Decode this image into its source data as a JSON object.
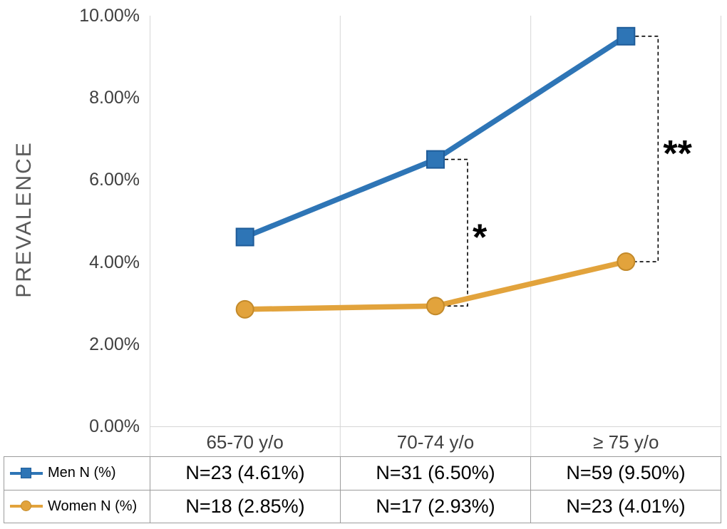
{
  "chart_data": {
    "type": "line",
    "title": "",
    "ylabel": "PREVALENCE",
    "xlabel": "",
    "categories": [
      "65-70 y/o",
      "70-74 y/o",
      "≥ 75 y/o"
    ],
    "series": [
      {
        "name": "Men N (%)",
        "values": [
          4.61,
          6.5,
          9.5
        ],
        "counts": [
          23,
          31,
          59
        ],
        "color": "#2E75B6",
        "marker_edge": "#1F5C99",
        "marker": "square"
      },
      {
        "name": "Women N (%)",
        "values": [
          2.85,
          2.93,
          4.01
        ],
        "counts": [
          18,
          17,
          23
        ],
        "color": "#E2A33C",
        "marker_edge": "#C38A2A",
        "marker": "circle"
      }
    ],
    "ylim": [
      0,
      10
    ],
    "ytick_step": 2,
    "ytick_labels": [
      "0.00%",
      "2.00%",
      "4.00%",
      "6.00%",
      "8.00%",
      "10.00%"
    ],
    "grid": "vertical",
    "gridline_color": "#D6D6D6",
    "annotation_color": "#000000",
    "legend_position": "table-left",
    "annotations": [
      {
        "text": "*",
        "category_index": 1
      },
      {
        "text": "**",
        "category_index": 2
      }
    ]
  },
  "table": {
    "rows": [
      {
        "legend": "Men N (%)",
        "cells": [
          "N=23 (4.61%)",
          "N=31 (6.50%)",
          "N=59 (9.50%)"
        ]
      },
      {
        "legend": "Women N (%)",
        "cells": [
          "N=18 (2.85%)",
          "N=17 (2.93%)",
          "N=23 (4.01%)"
        ]
      }
    ]
  }
}
